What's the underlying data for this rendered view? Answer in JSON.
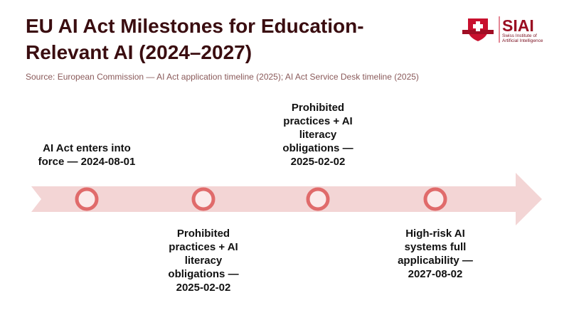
{
  "title": "EU AI Act Milestones for Education-Relevant AI (2024–2027)",
  "source": "Source: European Commission — AI Act application timeline (2025); AI Act Service Desk timeline (2025)",
  "logo": {
    "name": "SIAI",
    "subtitle_line1": "Swiss Institute of",
    "subtitle_line2": "Artificial Intelligence"
  },
  "colors": {
    "title": "#3a0d10",
    "band": "#f3d5d5",
    "marker_stroke": "#e06b6b",
    "marker_fill": "#fbeaea",
    "logo_red": "#c8102e"
  },
  "milestones": [
    {
      "label": "AI Act enters into force — 2024-08-01",
      "position": "above"
    },
    {
      "label": "Prohibited practices + AI literacy obligations — 2025-02-02",
      "position": "below"
    },
    {
      "label": "Prohibited practices + AI literacy obligations — 2025-02-02",
      "position": "above"
    },
    {
      "label": "High-risk AI systems full applicability — 2027-08-02",
      "position": "below"
    }
  ]
}
